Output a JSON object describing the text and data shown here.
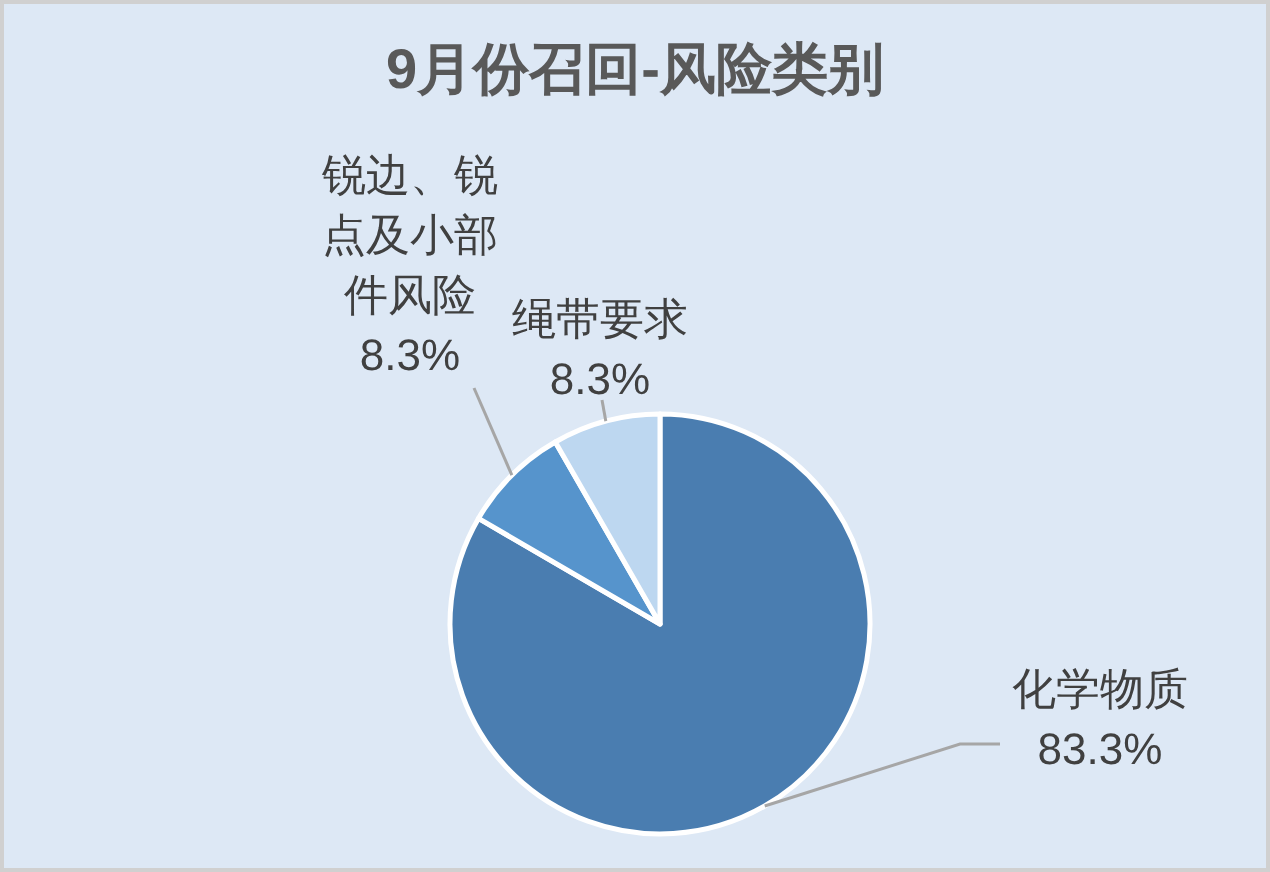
{
  "chart_data": {
    "type": "pie",
    "title": "9月份召回-风险类别",
    "categories": [
      "化学物质",
      "锐边、锐点及小部件风险",
      "绳带要求"
    ],
    "values": [
      83.3,
      8.3,
      8.3
    ],
    "value_labels": [
      "83.3%",
      "8.3%",
      "8.3%"
    ],
    "colors": [
      "#4a7db0",
      "#5694cc",
      "#bdd7f0"
    ]
  }
}
